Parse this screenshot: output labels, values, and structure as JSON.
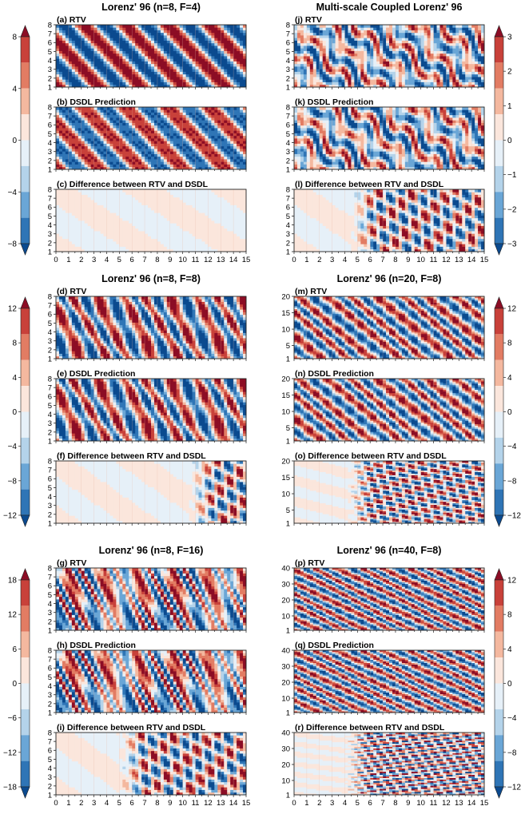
{
  "figure": {
    "rows": [
      {
        "left": {
          "title": "Lorenz' 96 (n=8, F=4)",
          "panels": [
            "(a) RTV",
            "(b) DSDL Prediction",
            "(c) Difference between RTV and DSDL"
          ],
          "y_ticks": [
            "1",
            "2",
            "3",
            "4",
            "5",
            "6",
            "7",
            "8"
          ],
          "y_range": [
            1,
            8
          ],
          "pattern": "bands",
          "diff_start": null
        },
        "right": {
          "title": "Multi-scale Coupled Lorenz' 96",
          "panels": [
            "(j) RTV",
            "(k) DSDL Prediction",
            "(l) Difference between RTV and DSDL"
          ],
          "y_ticks": [
            "1",
            "2",
            "3",
            "4",
            "5",
            "6",
            "7",
            "8"
          ],
          "y_range": [
            1,
            8
          ],
          "pattern": "chaotic",
          "diff_start": 4.5
        },
        "colorbar_left": {
          "ticks": [
            "8",
            "4",
            "0",
            "−4",
            "−8"
          ],
          "vmax": 8
        },
        "colorbar_right": {
          "ticks": [
            "3",
            "2",
            "1",
            "0",
            "−1",
            "−2",
            "−3"
          ],
          "vmax": 3
        },
        "x_ticks_shown": true
      },
      {
        "left": {
          "title": "Lorenz' 96 (n=8, F=8)",
          "panels": [
            "(d) RTV",
            "(e) DSDL Prediction",
            "(f) Difference between RTV and DSDL"
          ],
          "y_ticks": [
            "1",
            "2",
            "3",
            "4",
            "5",
            "6",
            "7",
            "8"
          ],
          "y_range": [
            1,
            8
          ],
          "pattern": "waves",
          "diff_start": 10.5
        },
        "right": {
          "title": "Lorenz' 96 (n=20, F=8)",
          "panels": [
            "(m) RTV",
            "(n) DSDL Prediction",
            "(o) Difference between RTV and DSDL"
          ],
          "y_ticks": [
            "5",
            "10",
            "15",
            "20"
          ],
          "y_extra_tick": "1",
          "y_range": [
            1,
            20
          ],
          "pattern": "stripes",
          "diff_start": 4.2
        },
        "colorbar_left": {
          "ticks": [
            "12",
            "8",
            "4",
            "0",
            "−4",
            "−8",
            "−12"
          ],
          "vmax": 12
        },
        "colorbar_right": {
          "ticks": [
            "12",
            "8",
            "4",
            "0",
            "−4",
            "−8",
            "−12"
          ],
          "vmax": 12
        },
        "x_ticks_shown": false
      },
      {
        "left": {
          "title": "Lorenz' 96 (n=8, F=16)",
          "panels": [
            "(g) RTV",
            "(h) DSDL Prediction",
            "(i) Difference between RTV and DSDL"
          ],
          "y_ticks": [
            "1",
            "2",
            "3",
            "4",
            "5",
            "6",
            "7",
            "8"
          ],
          "y_range": [
            1,
            8
          ],
          "pattern": "turbulent",
          "diff_start": 5.0
        },
        "right": {
          "title": "Lorenz' 96 (n=40, F=8)",
          "panels": [
            "(p) RTV",
            "(q) DSDL Prediction",
            "(r) Difference between RTV and DSDL"
          ],
          "y_ticks": [
            "10",
            "20",
            "30",
            "40"
          ],
          "y_extra_tick": "1",
          "y_range": [
            1,
            40
          ],
          "pattern": "fine",
          "diff_start": 4.0
        },
        "colorbar_left": {
          "ticks": [
            "18",
            "12",
            "6",
            "0",
            "−6",
            "−12",
            "−18"
          ],
          "vmax": 18
        },
        "colorbar_right": {
          "ticks": [
            "12",
            "8",
            "4",
            "0",
            "−4",
            "−8",
            "−12"
          ],
          "vmax": 12
        },
        "x_ticks_shown": true
      }
    ],
    "x_ticks": [
      "0",
      "1",
      "2",
      "3",
      "4",
      "5",
      "6",
      "7",
      "8",
      "9",
      "10",
      "11",
      "12",
      "13",
      "14",
      "15"
    ],
    "x_range": [
      0,
      15
    ],
    "colormap": [
      "#0b4a8f",
      "#2f75b6",
      "#6aa6d6",
      "#b4d3ea",
      "#e6f0f8",
      "#fbe6dc",
      "#f4b89f",
      "#e27c63",
      "#c8413a",
      "#8c0d25"
    ]
  },
  "chart_data": [
    {
      "type": "heatmap",
      "title": "Lorenz' 96 (n=8, F=4)",
      "panels": [
        "(a) RTV",
        "(b) DSDL Prediction",
        "(c) Difference between RTV and DSDL"
      ],
      "xlim": [
        0,
        15
      ],
      "ylim": [
        1,
        8
      ],
      "vlim": [
        -8,
        8
      ]
    },
    {
      "type": "heatmap",
      "title": "Multi-scale Coupled Lorenz' 96",
      "panels": [
        "(j) RTV",
        "(k) DSDL Prediction",
        "(l) Difference between RTV and DSDL"
      ],
      "xlim": [
        0,
        15
      ],
      "ylim": [
        1,
        8
      ],
      "vlim": [
        -3,
        3
      ]
    },
    {
      "type": "heatmap",
      "title": "Lorenz' 96 (n=8, F=8)",
      "panels": [
        "(d) RTV",
        "(e) DSDL Prediction",
        "(f) Difference between RTV and DSDL"
      ],
      "xlim": [
        0,
        15
      ],
      "ylim": [
        1,
        8
      ],
      "vlim": [
        -12,
        12
      ]
    },
    {
      "type": "heatmap",
      "title": "Lorenz' 96 (n=20, F=8)",
      "panels": [
        "(m) RTV",
        "(n) DSDL Prediction",
        "(o) Difference between RTV and DSDL"
      ],
      "xlim": [
        0,
        15
      ],
      "ylim": [
        1,
        20
      ],
      "vlim": [
        -12,
        12
      ]
    },
    {
      "type": "heatmap",
      "title": "Lorenz' 96 (n=8, F=16)",
      "panels": [
        "(g) RTV",
        "(h) DSDL Prediction",
        "(i) Difference between RTV and DSDL"
      ],
      "xlim": [
        0,
        15
      ],
      "ylim": [
        1,
        8
      ],
      "vlim": [
        -18,
        18
      ]
    },
    {
      "type": "heatmap",
      "title": "Lorenz' 96 (n=40, F=8)",
      "panels": [
        "(p) RTV",
        "(q) DSDL Prediction",
        "(r) Difference between RTV and DSDL"
      ],
      "xlim": [
        0,
        15
      ],
      "ylim": [
        1,
        40
      ],
      "vlim": [
        -12,
        12
      ]
    }
  ]
}
